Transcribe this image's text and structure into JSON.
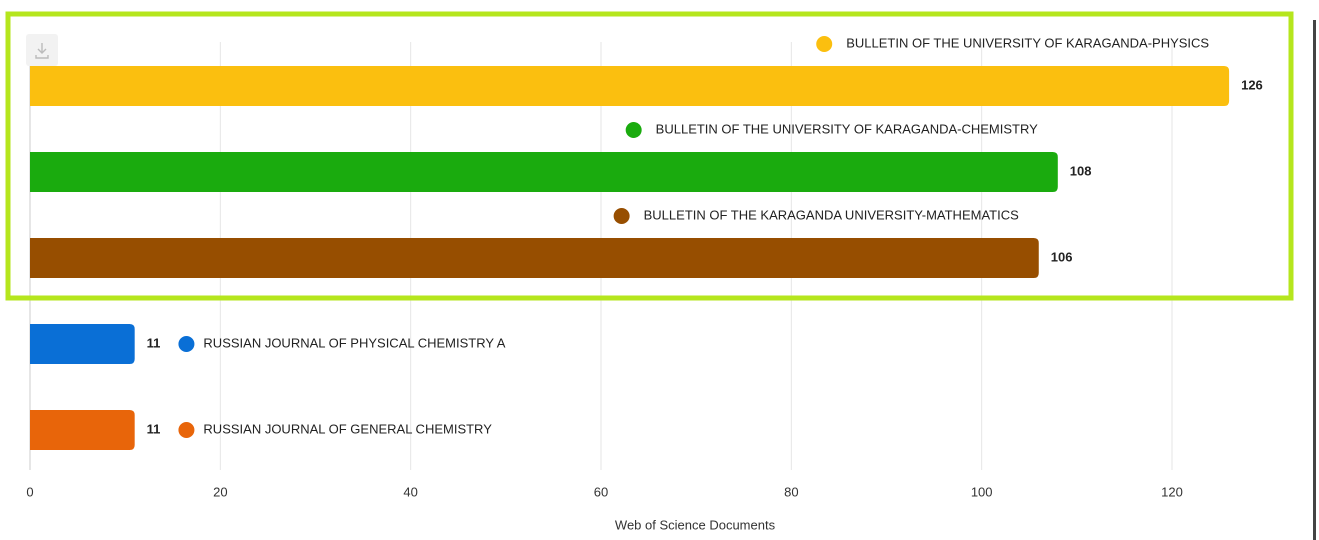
{
  "chart_data": {
    "type": "bar",
    "orientation": "horizontal",
    "categories": [
      "BULLETIN OF THE UNIVERSITY OF KARAGANDA-PHYSICS",
      "BULLETIN OF THE UNIVERSITY OF KARAGANDA-CHEMISTRY",
      "BULLETIN OF THE KARAGANDA UNIVERSITY-MATHEMATICS",
      "RUSSIAN JOURNAL OF PHYSICAL CHEMISTRY A",
      "RUSSIAN JOURNAL OF GENERAL CHEMISTRY"
    ],
    "values": [
      126,
      108,
      106,
      11,
      11
    ],
    "colors": [
      "#fbbf0f",
      "#1aab0e",
      "#974e00",
      "#0a6fd6",
      "#e8650a"
    ],
    "xlabel": "Web of Science Documents",
    "xlim": [
      0,
      135
    ],
    "xticks": [
      0,
      20,
      40,
      60,
      80,
      100,
      120
    ],
    "grid": true
  }
}
